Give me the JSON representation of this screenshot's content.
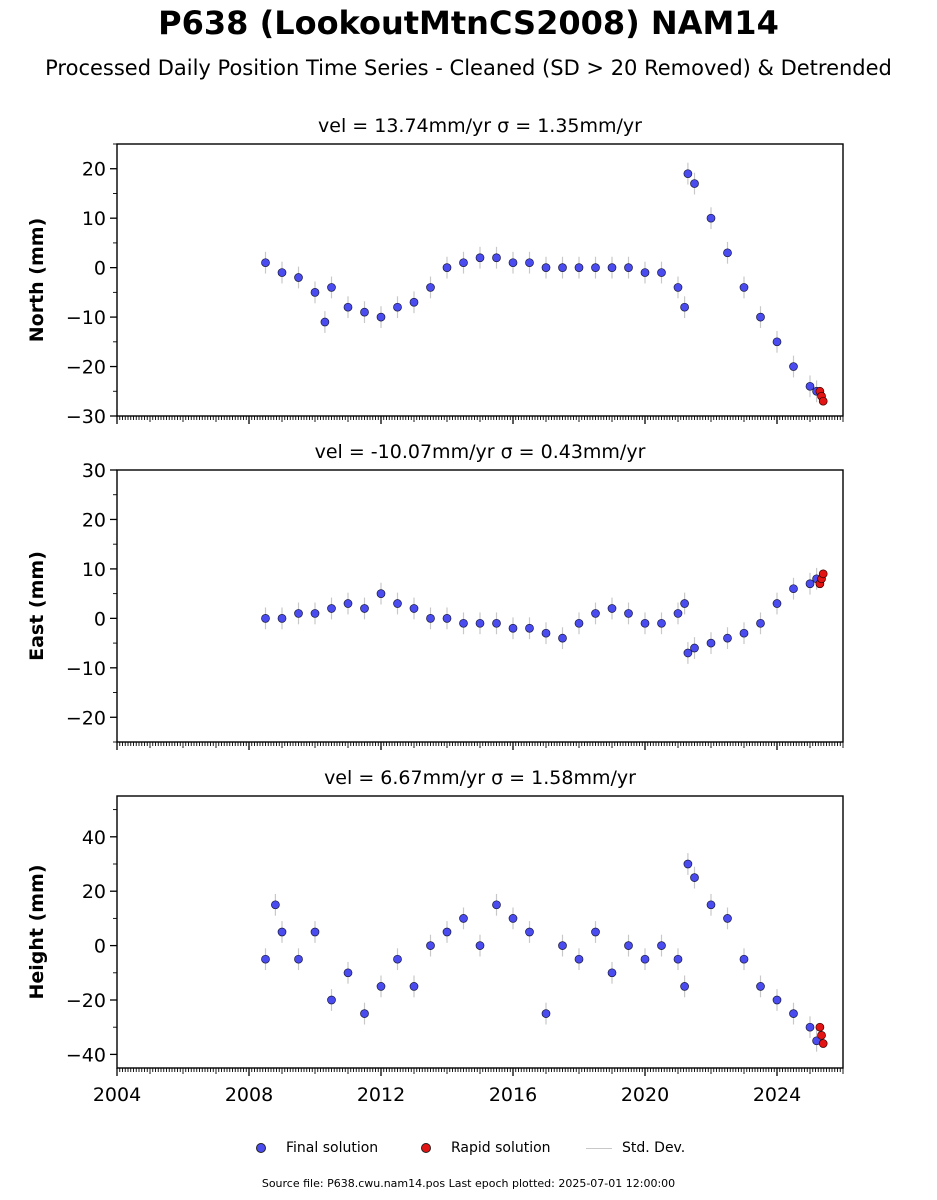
{
  "title": "P638 (LookoutMtnCS2008) NAM14",
  "subtitle": "Processed Daily Position Time Series - Cleaned (SD > 20 Removed) & Detrended",
  "source": "Source file: P638.cwu.nam14.pos  Last epoch plotted: 2025-07-01 12:00:00",
  "legend": {
    "final": "Final solution",
    "rapid": "Rapid solution",
    "sd": "Std. Dev."
  },
  "colors": {
    "final": "#4a4cf0",
    "rapid": "#e31414",
    "sd": "#c8c8c8"
  },
  "chart_data": [
    {
      "type": "scatter",
      "title": "vel = 13.74mm/yr   σ = 1.35mm/yr",
      "ylabel": "North (mm)",
      "xlim": [
        2004,
        2026
      ],
      "ylim": [
        -30,
        25
      ],
      "yticks": [
        -30,
        -20,
        -10,
        0,
        10,
        20
      ],
      "xticks": [],
      "series": [
        {
          "name": "Final solution",
          "x": [
            2008.5,
            2009.0,
            2009.5,
            2010.0,
            2010.3,
            2010.5,
            2011.0,
            2011.5,
            2012.0,
            2012.5,
            2013.0,
            2013.5,
            2014.0,
            2014.5,
            2015.0,
            2015.5,
            2016.0,
            2016.5,
            2017.0,
            2017.5,
            2018.0,
            2018.5,
            2019.0,
            2019.5,
            2020.0,
            2020.5,
            2021.0,
            2021.2,
            2021.3,
            2021.5,
            2022.0,
            2022.5,
            2023.0,
            2023.5,
            2024.0,
            2024.5,
            2025.0,
            2025.2
          ],
          "y": [
            1,
            -1,
            -2,
            -5,
            -11,
            -4,
            -8,
            -9,
            -10,
            -8,
            -7,
            -4,
            0,
            1,
            2,
            2,
            1,
            1,
            0,
            0,
            0,
            0,
            0,
            0,
            -1,
            -1,
            -4,
            -8,
            19,
            17,
            10,
            3,
            -4,
            -10,
            -15,
            -20,
            -24,
            -25
          ]
        },
        {
          "name": "Rapid solution",
          "x": [
            2025.3,
            2025.35,
            2025.4
          ],
          "y": [
            -25,
            -26,
            -27
          ]
        }
      ]
    },
    {
      "type": "scatter",
      "title": "vel = -10.07mm/yr   σ = 0.43mm/yr",
      "ylabel": "East (mm)",
      "xlim": [
        2004,
        2026
      ],
      "ylim": [
        -25,
        30
      ],
      "yticks": [
        -20,
        -10,
        0,
        10,
        20,
        30
      ],
      "xticks": [],
      "series": [
        {
          "name": "Final solution",
          "x": [
            2008.5,
            2009.0,
            2009.5,
            2010.0,
            2010.5,
            2011.0,
            2011.5,
            2012.0,
            2012.5,
            2013.0,
            2013.5,
            2014.0,
            2014.5,
            2015.0,
            2015.5,
            2016.0,
            2016.5,
            2017.0,
            2017.5,
            2018.0,
            2018.5,
            2019.0,
            2019.5,
            2020.0,
            2020.5,
            2021.0,
            2021.2,
            2021.3,
            2021.5,
            2022.0,
            2022.5,
            2023.0,
            2023.5,
            2024.0,
            2024.5,
            2025.0,
            2025.2
          ],
          "y": [
            0,
            0,
            1,
            1,
            2,
            3,
            2,
            5,
            3,
            2,
            0,
            0,
            -1,
            -1,
            -1,
            -2,
            -2,
            -3,
            -4,
            -1,
            1,
            2,
            1,
            -1,
            -1,
            1,
            3,
            -7,
            -6,
            -5,
            -4,
            -3,
            -1,
            3,
            6,
            7,
            8
          ]
        },
        {
          "name": "Rapid solution",
          "x": [
            2025.3,
            2025.35,
            2025.4
          ],
          "y": [
            7,
            8,
            9
          ]
        }
      ]
    },
    {
      "type": "scatter",
      "title": "vel = 6.67mm/yr   σ = 1.58mm/yr",
      "ylabel": "Height (mm)",
      "xlim": [
        2004,
        2026
      ],
      "ylim": [
        -45,
        55
      ],
      "yticks": [
        -40,
        -20,
        0,
        20,
        40
      ],
      "xticks": [
        "2004",
        "2008",
        "2012",
        "2016",
        "2020",
        "2024"
      ],
      "series": [
        {
          "name": "Final solution",
          "x": [
            2008.5,
            2008.8,
            2009.0,
            2009.5,
            2010.0,
            2010.5,
            2011.0,
            2011.5,
            2012.0,
            2012.5,
            2013.0,
            2013.5,
            2014.0,
            2014.5,
            2015.0,
            2015.5,
            2016.0,
            2016.5,
            2017.0,
            2017.5,
            2018.0,
            2018.5,
            2019.0,
            2019.5,
            2020.0,
            2020.5,
            2021.0,
            2021.2,
            2021.3,
            2021.5,
            2022.0,
            2022.5,
            2023.0,
            2023.5,
            2024.0,
            2024.5,
            2025.0,
            2025.2
          ],
          "y": [
            -5,
            15,
            5,
            -5,
            5,
            -20,
            -10,
            -25,
            -15,
            -5,
            -15,
            0,
            5,
            10,
            0,
            15,
            10,
            5,
            -25,
            0,
            -5,
            5,
            -10,
            0,
            -5,
            0,
            -5,
            -15,
            30,
            25,
            15,
            10,
            -5,
            -15,
            -20,
            -25,
            -30,
            -35
          ]
        },
        {
          "name": "Rapid solution",
          "x": [
            2025.3,
            2025.35,
            2025.4
          ],
          "y": [
            -30,
            -33,
            -36
          ]
        }
      ]
    }
  ]
}
